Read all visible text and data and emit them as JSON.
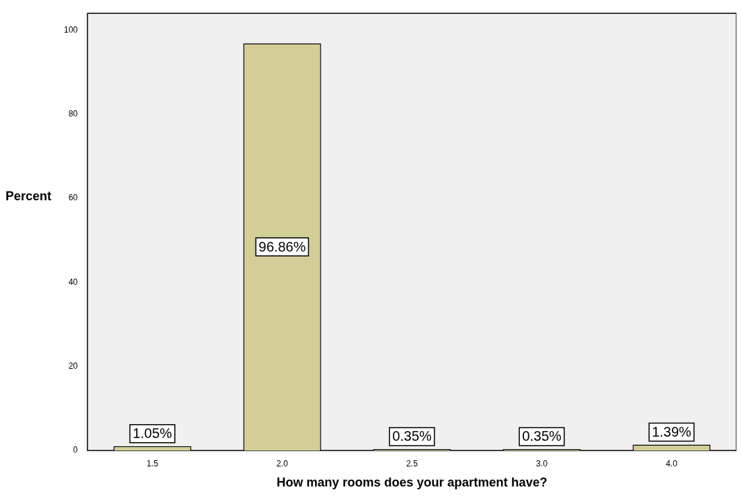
{
  "chart_data": {
    "type": "bar",
    "xlabel": "How many rooms does your apartment have?",
    "ylabel": "Percent",
    "categories": [
      "1.5",
      "2.0",
      "2.5",
      "3.0",
      "4.0"
    ],
    "values": [
      1.05,
      96.86,
      0.35,
      0.35,
      1.39
    ],
    "value_labels": [
      "1.05%",
      "96.86%",
      "0.35%",
      "0.35%",
      "1.39%"
    ],
    "color": "#d3ce98",
    "ylim": [
      0,
      104
    ],
    "yticks": [
      0,
      20,
      40,
      60,
      80,
      100
    ]
  }
}
